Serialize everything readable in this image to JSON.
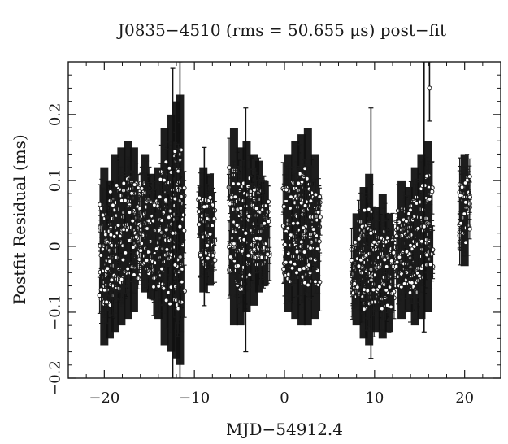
{
  "chart_data": {
    "type": "scatter",
    "title": "J0835−4510 (rms = 50.655 μs) post−fit",
    "xlabel": "MJD−54912.4",
    "ylabel": "Postfit Residual (ms)",
    "xlim": [
      -24,
      24
    ],
    "ylim": [
      -0.2,
      0.28
    ],
    "x_ticks": [
      -20,
      -10,
      0,
      10,
      20
    ],
    "x_tick_labels": [
      "−20",
      "−10",
      "0",
      "10",
      "20"
    ],
    "y_ticks": [
      -0.2,
      -0.1,
      0,
      0.1,
      0.2
    ],
    "y_tick_labels": [
      "−0.2",
      "−0.1",
      "0",
      "0.1",
      "0.2"
    ],
    "marker": "open-circle-with-error-bar",
    "grid": false,
    "series": [
      {
        "points_summary": [
          {
            "x": -20.0,
            "y_low": -0.15,
            "y_high": 0.12
          },
          {
            "x": -19.4,
            "y_low": -0.14,
            "y_high": 0.1
          },
          {
            "x": -18.8,
            "y_low": -0.13,
            "y_high": 0.14
          },
          {
            "x": -18.1,
            "y_low": -0.12,
            "y_high": 0.15
          },
          {
            "x": -17.4,
            "y_low": -0.11,
            "y_high": 0.16
          },
          {
            "x": -16.7,
            "y_low": -0.1,
            "y_high": 0.15
          },
          {
            "x": -15.5,
            "y_low": -0.07,
            "y_high": 0.14
          },
          {
            "x": -14.8,
            "y_low": -0.08,
            "y_high": 0.11
          },
          {
            "x": -14.0,
            "y_low": -0.11,
            "y_high": 0.12
          },
          {
            "x": -13.3,
            "y_low": -0.15,
            "y_high": 0.18
          },
          {
            "x": -12.6,
            "y_low": -0.16,
            "y_high": 0.2
          },
          {
            "x": -12.0,
            "y_low": -0.17,
            "y_high": 0.22
          },
          {
            "x": -11.6,
            "y_low": -0.18,
            "y_high": 0.23
          },
          {
            "x": -9.0,
            "y_low": -0.07,
            "y_high": 0.12
          },
          {
            "x": -8.3,
            "y_low": -0.06,
            "y_high": 0.11
          },
          {
            "x": -5.6,
            "y_low": -0.12,
            "y_high": 0.18
          },
          {
            "x": -4.9,
            "y_low": -0.12,
            "y_high": 0.15
          },
          {
            "x": -4.2,
            "y_low": -0.1,
            "y_high": 0.16
          },
          {
            "x": -3.4,
            "y_low": -0.09,
            "y_high": 0.14
          },
          {
            "x": -2.8,
            "y_low": -0.07,
            "y_high": 0.13
          },
          {
            "x": -2.2,
            "y_low": -0.06,
            "y_high": 0.1
          },
          {
            "x": 0.4,
            "y_low": -0.1,
            "y_high": 0.14
          },
          {
            "x": 1.2,
            "y_low": -0.11,
            "y_high": 0.16
          },
          {
            "x": 1.9,
            "y_low": -0.12,
            "y_high": 0.17
          },
          {
            "x": 2.6,
            "y_low": -0.12,
            "y_high": 0.18
          },
          {
            "x": 3.4,
            "y_low": -0.11,
            "y_high": 0.14
          },
          {
            "x": 8.0,
            "y_low": -0.12,
            "y_high": 0.05
          },
          {
            "x": 8.8,
            "y_low": -0.14,
            "y_high": 0.09
          },
          {
            "x": 9.4,
            "y_low": -0.15,
            "y_high": 0.11
          },
          {
            "x": 10.2,
            "y_low": -0.13,
            "y_high": 0.06
          },
          {
            "x": 10.9,
            "y_low": -0.14,
            "y_high": 0.08
          },
          {
            "x": 11.6,
            "y_low": -0.13,
            "y_high": 0.05
          },
          {
            "x": 13.0,
            "y_low": -0.11,
            "y_high": 0.1
          },
          {
            "x": 13.8,
            "y_low": -0.1,
            "y_high": 0.09
          },
          {
            "x": 14.5,
            "y_low": -0.12,
            "y_high": 0.12
          },
          {
            "x": 15.2,
            "y_low": -0.11,
            "y_high": 0.14
          },
          {
            "x": 15.9,
            "y_low": -0.1,
            "y_high": 0.16
          },
          {
            "x": 20.0,
            "y_low": -0.03,
            "y_high": 0.14
          }
        ]
      }
    ]
  }
}
